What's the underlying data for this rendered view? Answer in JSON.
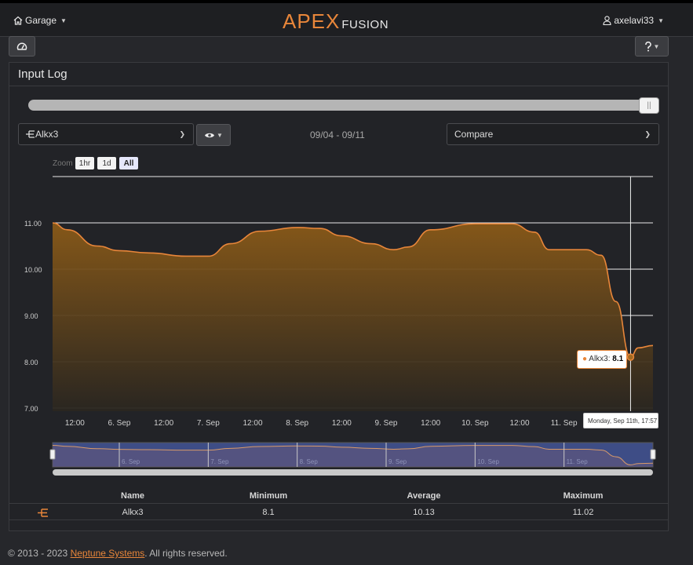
{
  "nav": {
    "garage_label": "Garage",
    "logo_apex": "APEX",
    "logo_fusion": "FUSION",
    "user_label": "axelavi33"
  },
  "panel": {
    "title": "Input Log",
    "probe_select": "Alkx3",
    "date_range": "09/04 - 09/11",
    "compare_select": "Compare"
  },
  "zoom": {
    "label": "Zoom",
    "buttons": [
      "1hr",
      "1d",
      "All"
    ],
    "active": "All"
  },
  "chart_data": {
    "type": "area",
    "series": [
      {
        "name": "Alkx3",
        "color": "#e8863a",
        "points": [
          [
            "09/05 06:00",
            11.0
          ],
          [
            "09/05 10:00",
            10.85
          ],
          [
            "09/05 18:00",
            10.5
          ],
          [
            "09/06 00:00",
            10.4
          ],
          [
            "09/06 08:00",
            10.35
          ],
          [
            "09/06 18:00",
            10.28
          ],
          [
            "09/07 00:00",
            10.28
          ],
          [
            "09/07 06:00",
            10.55
          ],
          [
            "09/07 14:00",
            10.82
          ],
          [
            "09/08 00:00",
            10.9
          ],
          [
            "09/08 06:00",
            10.88
          ],
          [
            "09/08 12:00",
            10.72
          ],
          [
            "09/08 20:00",
            10.55
          ],
          [
            "09/09 02:00",
            10.42
          ],
          [
            "09/09 06:00",
            10.48
          ],
          [
            "09/09 12:00",
            10.85
          ],
          [
            "09/10 00:00",
            10.98
          ],
          [
            "09/10 10:00",
            10.98
          ],
          [
            "09/10 16:00",
            10.8
          ],
          [
            "09/10 20:00",
            10.42
          ],
          [
            "09/11 06:00",
            10.42
          ],
          [
            "09/11 10:00",
            10.3
          ],
          [
            "09/11 14:00",
            9.3
          ],
          [
            "09/11 17:57",
            8.1
          ],
          [
            "09/11 20:00",
            8.3
          ],
          [
            "09/12 00:00",
            8.35
          ]
        ]
      }
    ],
    "y_ticks": [
      "7.00",
      "8.00",
      "9.00",
      "10.00",
      "11.00"
    ],
    "y_range": [
      7.0,
      12.0
    ],
    "x_ticks": [
      "12:00",
      "6. Sep",
      "12:00",
      "7. Sep",
      "12:00",
      "8. Sep",
      "12:00",
      "9. Sep",
      "12:00",
      "10. Sep",
      "12:00",
      "11. Sep"
    ],
    "navigator_ticks": [
      "6. Sep",
      "7. Sep",
      "8. Sep",
      "9. Sep",
      "10. Sep",
      "11. Sep"
    ],
    "grid": true
  },
  "tooltip": {
    "series": "Alkx3",
    "value": "8.1",
    "timestamp": "Monday, Sep 11th, 17:57"
  },
  "stats": {
    "headers": [
      "Name",
      "Minimum",
      "Average",
      "Maximum"
    ],
    "row": {
      "name": "Alkx3",
      "minimum": "8.1",
      "average": "10.13",
      "maximum": "11.02"
    }
  },
  "footer": {
    "prefix": "© 2013 - 2023 ",
    "company": "Neptune Systems",
    "suffix": ". All rights reserved."
  }
}
